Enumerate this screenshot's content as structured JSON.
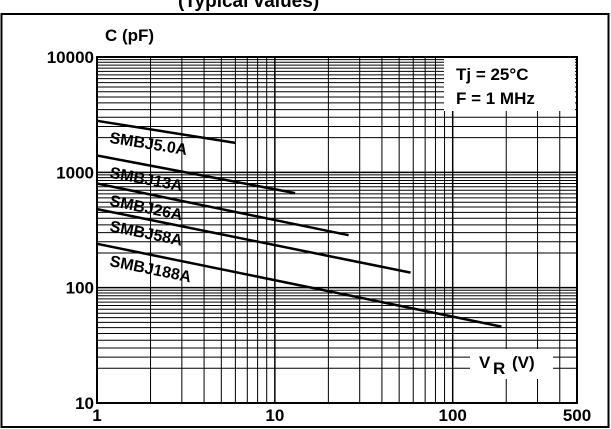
{
  "chart_data": {
    "type": "line",
    "title_fragment": "(Typical values)",
    "ylabel": "C  (pF)",
    "xlabel_main": "V",
    "xlabel_sub": "R",
    "xlabel_unit": "(V)",
    "x_scale": "log",
    "y_scale": "log",
    "xlim": [
      1,
      500
    ],
    "ylim": [
      10,
      10000
    ],
    "x_ticks": [
      1,
      10,
      100,
      500
    ],
    "x_tick_labels": [
      "1",
      "10",
      "100",
      "500"
    ],
    "y_ticks": [
      10,
      100,
      1000,
      10000
    ],
    "y_tick_labels": [
      "10",
      "100",
      "1000",
      "10000"
    ],
    "grid": true,
    "conditions": [
      "Tj = 25°C",
      "F = 1 MHz"
    ],
    "series": [
      {
        "name": "SMBJ5.0A",
        "x": [
          1,
          6
        ],
        "y": [
          2800,
          1800
        ]
      },
      {
        "name": "SMBJ13A",
        "x": [
          1,
          13
        ],
        "y": [
          1400,
          660
        ]
      },
      {
        "name": "SMBJ26A",
        "x": [
          1,
          26
        ],
        "y": [
          800,
          285
        ]
      },
      {
        "name": "SMBJ58A",
        "x": [
          1,
          58
        ],
        "y": [
          480,
          135
        ]
      },
      {
        "name": "SMBJ188A",
        "x": [
          1,
          188
        ],
        "y": [
          240,
          46
        ]
      }
    ]
  }
}
